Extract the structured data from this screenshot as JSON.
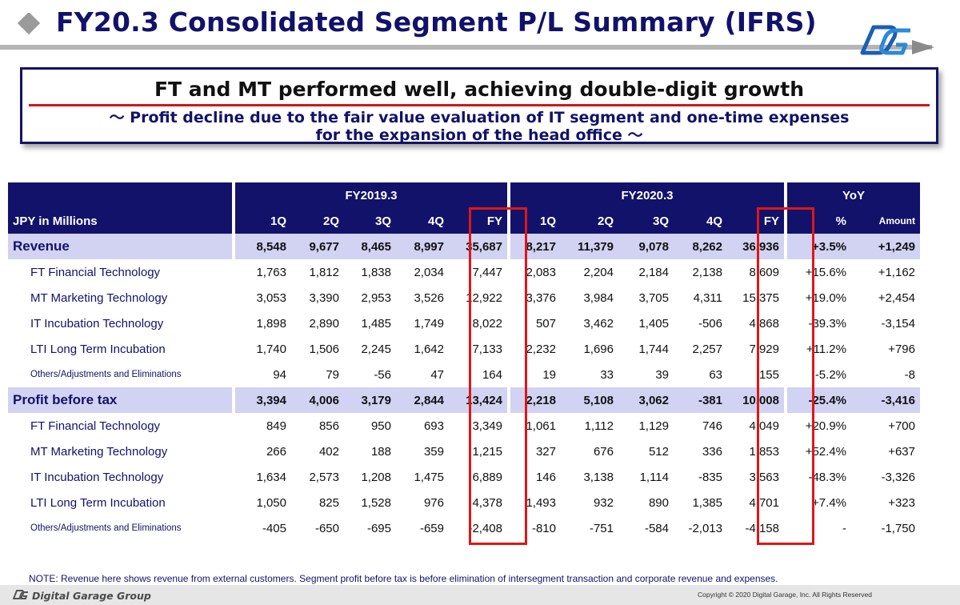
{
  "header": {
    "title": "FY20.3 Consolidated Segment P/L Summary (IFRS)",
    "bullet_icon": "diamond-cluster-icon",
    "logo_icon": "dg-logo-icon",
    "colors": {
      "navy": "#12126a",
      "red": "#e01616",
      "section_bg": "#d2d2f2"
    }
  },
  "callout": {
    "headline": "FT and MT performed well, achieving double-digit growth",
    "sub_line1": "～ Profit decline due to the fair value evaluation of IT segment and one-time expenses",
    "sub_line2": "for the expansion of the head office ～"
  },
  "table": {
    "unit_label": "JPY in Millions",
    "groups": {
      "fy2019": "FY2019.3",
      "fy2020": "FY2020.3",
      "yoy": "YoY"
    },
    "cols": {
      "q1": "1Q",
      "q2": "2Q",
      "q3": "3Q",
      "q4": "4Q",
      "fy": "FY",
      "pct": "%",
      "amount": "Amount"
    },
    "rows": [
      {
        "label": "Revenue",
        "section": true,
        "v": [
          "8,548",
          "9,677",
          "8,465",
          "8,997",
          "35,687",
          "8,217",
          "11,379",
          "9,078",
          "8,262",
          "36,936",
          "+3.5%",
          "+1,249"
        ]
      },
      {
        "label": "FT  Financial Technology",
        "v": [
          "1,763",
          "1,812",
          "1,838",
          "2,034",
          "7,447",
          "2,083",
          "2,204",
          "2,184",
          "2,138",
          "8,609",
          "+15.6%",
          "+1,162"
        ]
      },
      {
        "label": "MT  Marketing Technology",
        "v": [
          "3,053",
          "3,390",
          "2,953",
          "3,526",
          "12,922",
          "3,376",
          "3,984",
          "3,705",
          "4,311",
          "15,375",
          "+19.0%",
          "+2,454"
        ]
      },
      {
        "label": "IT    Incubation Technology",
        "v": [
          "1,898",
          "2,890",
          "1,485",
          "1,749",
          "8,022",
          "507",
          "3,462",
          "1,405",
          "-506",
          "4,868",
          "-39.3%",
          "-3,154"
        ]
      },
      {
        "label": "LTI  Long Term Incubation",
        "v": [
          "1,740",
          "1,506",
          "2,245",
          "1,642",
          "7,133",
          "2,232",
          "1,696",
          "1,744",
          "2,257",
          "7,929",
          "+11.2%",
          "+796"
        ]
      },
      {
        "label": "Others/Adjustments and Eliminations",
        "small": true,
        "v": [
          "94",
          "79",
          "-56",
          "47",
          "164",
          "19",
          "33",
          "39",
          "63",
          "155",
          "-5.2%",
          "-8"
        ]
      },
      {
        "label": "Profit before tax",
        "section": true,
        "v": [
          "3,394",
          "4,006",
          "3,179",
          "2,844",
          "13,424",
          "2,218",
          "5,108",
          "3,062",
          "-381",
          "10,008",
          "-25.4%",
          "-3,416"
        ]
      },
      {
        "label": "FT  Financial Technology",
        "v": [
          "849",
          "856",
          "950",
          "693",
          "3,349",
          "1,061",
          "1,112",
          "1,129",
          "746",
          "4,049",
          "+20.9%",
          "+700"
        ]
      },
      {
        "label": "MT  Marketing Technology",
        "v": [
          "266",
          "402",
          "188",
          "359",
          "1,215",
          "327",
          "676",
          "512",
          "336",
          "1,853",
          "+52.4%",
          "+637"
        ]
      },
      {
        "label": "IT    Incubation Technology",
        "v": [
          "1,634",
          "2,573",
          "1,208",
          "1,475",
          "6,889",
          "146",
          "3,138",
          "1,114",
          "-835",
          "3,563",
          "-48.3%",
          "-3,326"
        ]
      },
      {
        "label": "LTI  Long Term Incubation",
        "v": [
          "1,050",
          "825",
          "1,528",
          "976",
          "4,378",
          "1,493",
          "932",
          "890",
          "1,385",
          "4,701",
          "+7.4%",
          "+323"
        ]
      },
      {
        "label": "Others/Adjustments and Eliminations",
        "small": true,
        "v": [
          "-405",
          "-650",
          "-695",
          "-659",
          "-2,408",
          "-810",
          "-751",
          "-584",
          "-2,013",
          "-4,158",
          "-",
          "-1,750"
        ]
      }
    ]
  },
  "footer": {
    "note": "NOTE: Revenue here shows revenue from external customers. Segment profit before tax is before elimination of intersegment transaction and corporate revenue and expenses.",
    "brand": "Digital Garage Group",
    "copyright": "Copyright © 2020 Digital Garage, Inc. All Rights Reserved"
  }
}
